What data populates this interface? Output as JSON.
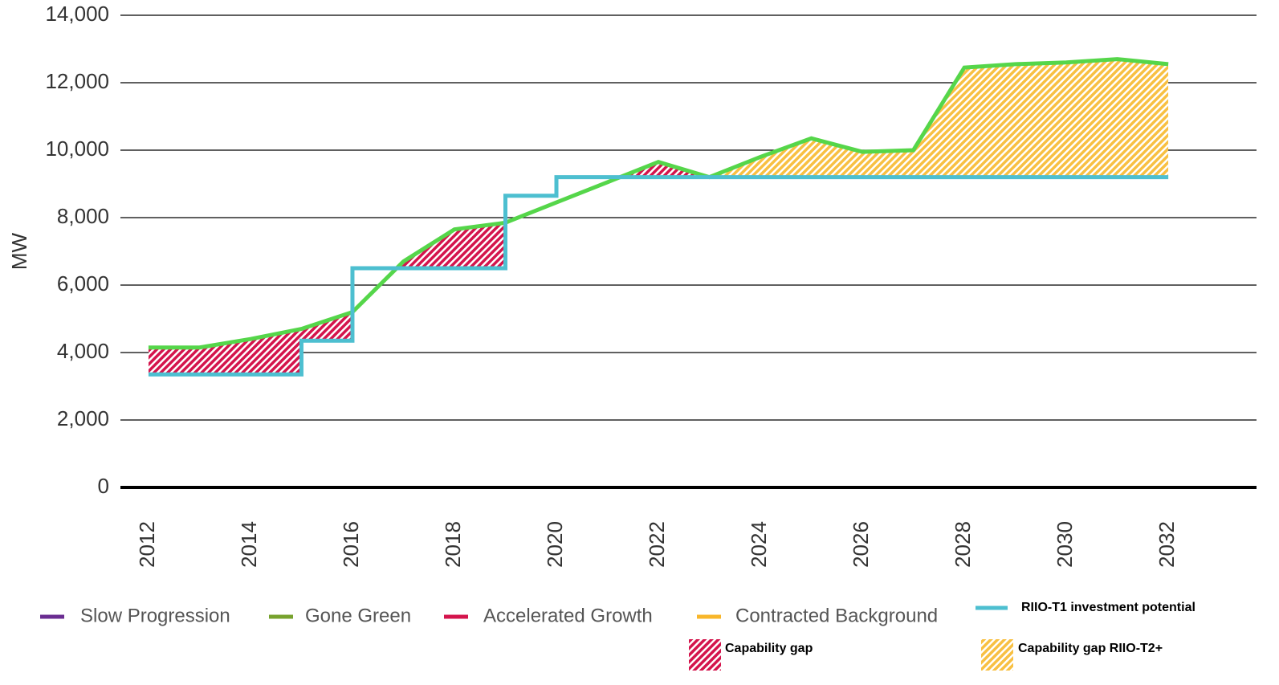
{
  "chart_data": {
    "type": "line",
    "y_label": "MW",
    "x": [
      2012,
      2013,
      2014,
      2015,
      2016,
      2017,
      2018,
      2019,
      2020,
      2021,
      2022,
      2023,
      2024,
      2025,
      2026,
      2027,
      2028,
      2029,
      2030,
      2031,
      2032
    ],
    "xlim": [
      2011.45,
      2033.73
    ],
    "xticks": [
      2012,
      2014,
      2016,
      2018,
      2020,
      2022,
      2024,
      2026,
      2028,
      2030,
      2032
    ],
    "ylim": [
      0,
      14000
    ],
    "yticks": [
      0,
      {
        "value": 2000,
        "label": "2,000"
      },
      {
        "value": 4000,
        "label": "4,000"
      },
      {
        "value": 6000,
        "label": "6,000"
      },
      {
        "value": 8000,
        "label": "8,000"
      },
      {
        "value": 10000,
        "label": "10,000"
      },
      {
        "value": 12000,
        "label": "12,000"
      },
      {
        "value": 14000,
        "label": "14,000"
      }
    ],
    "grid": true,
    "series": [
      {
        "color": "#55d64a",
        "step": false,
        "values": [
          4150,
          4150,
          4400,
          4700,
          5200,
          6700,
          7650,
          7850,
          8450,
          9050,
          9650,
          9200,
          9800,
          10350,
          9950,
          10000,
          12450,
          12550,
          12600,
          12700,
          12550
        ]
      },
      {
        "color": "#4dbfd0",
        "step": true,
        "values": [
          3350,
          3350,
          3350,
          4350,
          6500,
          6500,
          6500,
          8650,
          9200,
          9200,
          9200,
          9200,
          9200,
          9200,
          9200,
          9200,
          9200,
          9200,
          9200,
          9200,
          9200
        ]
      }
    ],
    "areas": [
      {
        "name": "Capability gap",
        "color": "#d4144c",
        "x": [
          2012,
          2023
        ]
      },
      {
        "name": "Capability gap RIIO-T2+",
        "color": "#f8c042",
        "x": [
          2023,
          2032
        ]
      }
    ],
    "legend": [
      {
        "name": "Slow Progression",
        "color": "#6a2c91"
      },
      {
        "name": "Gone Green",
        "color": "#77a22d"
      },
      {
        "name": "Accelerated Growth",
        "color": "#d4144c"
      },
      {
        "name": "Contracted Background",
        "color": "#f8b62a"
      },
      {
        "name": "RIIO-T1 investment potential",
        "color": "#4dbfd0"
      }
    ]
  }
}
